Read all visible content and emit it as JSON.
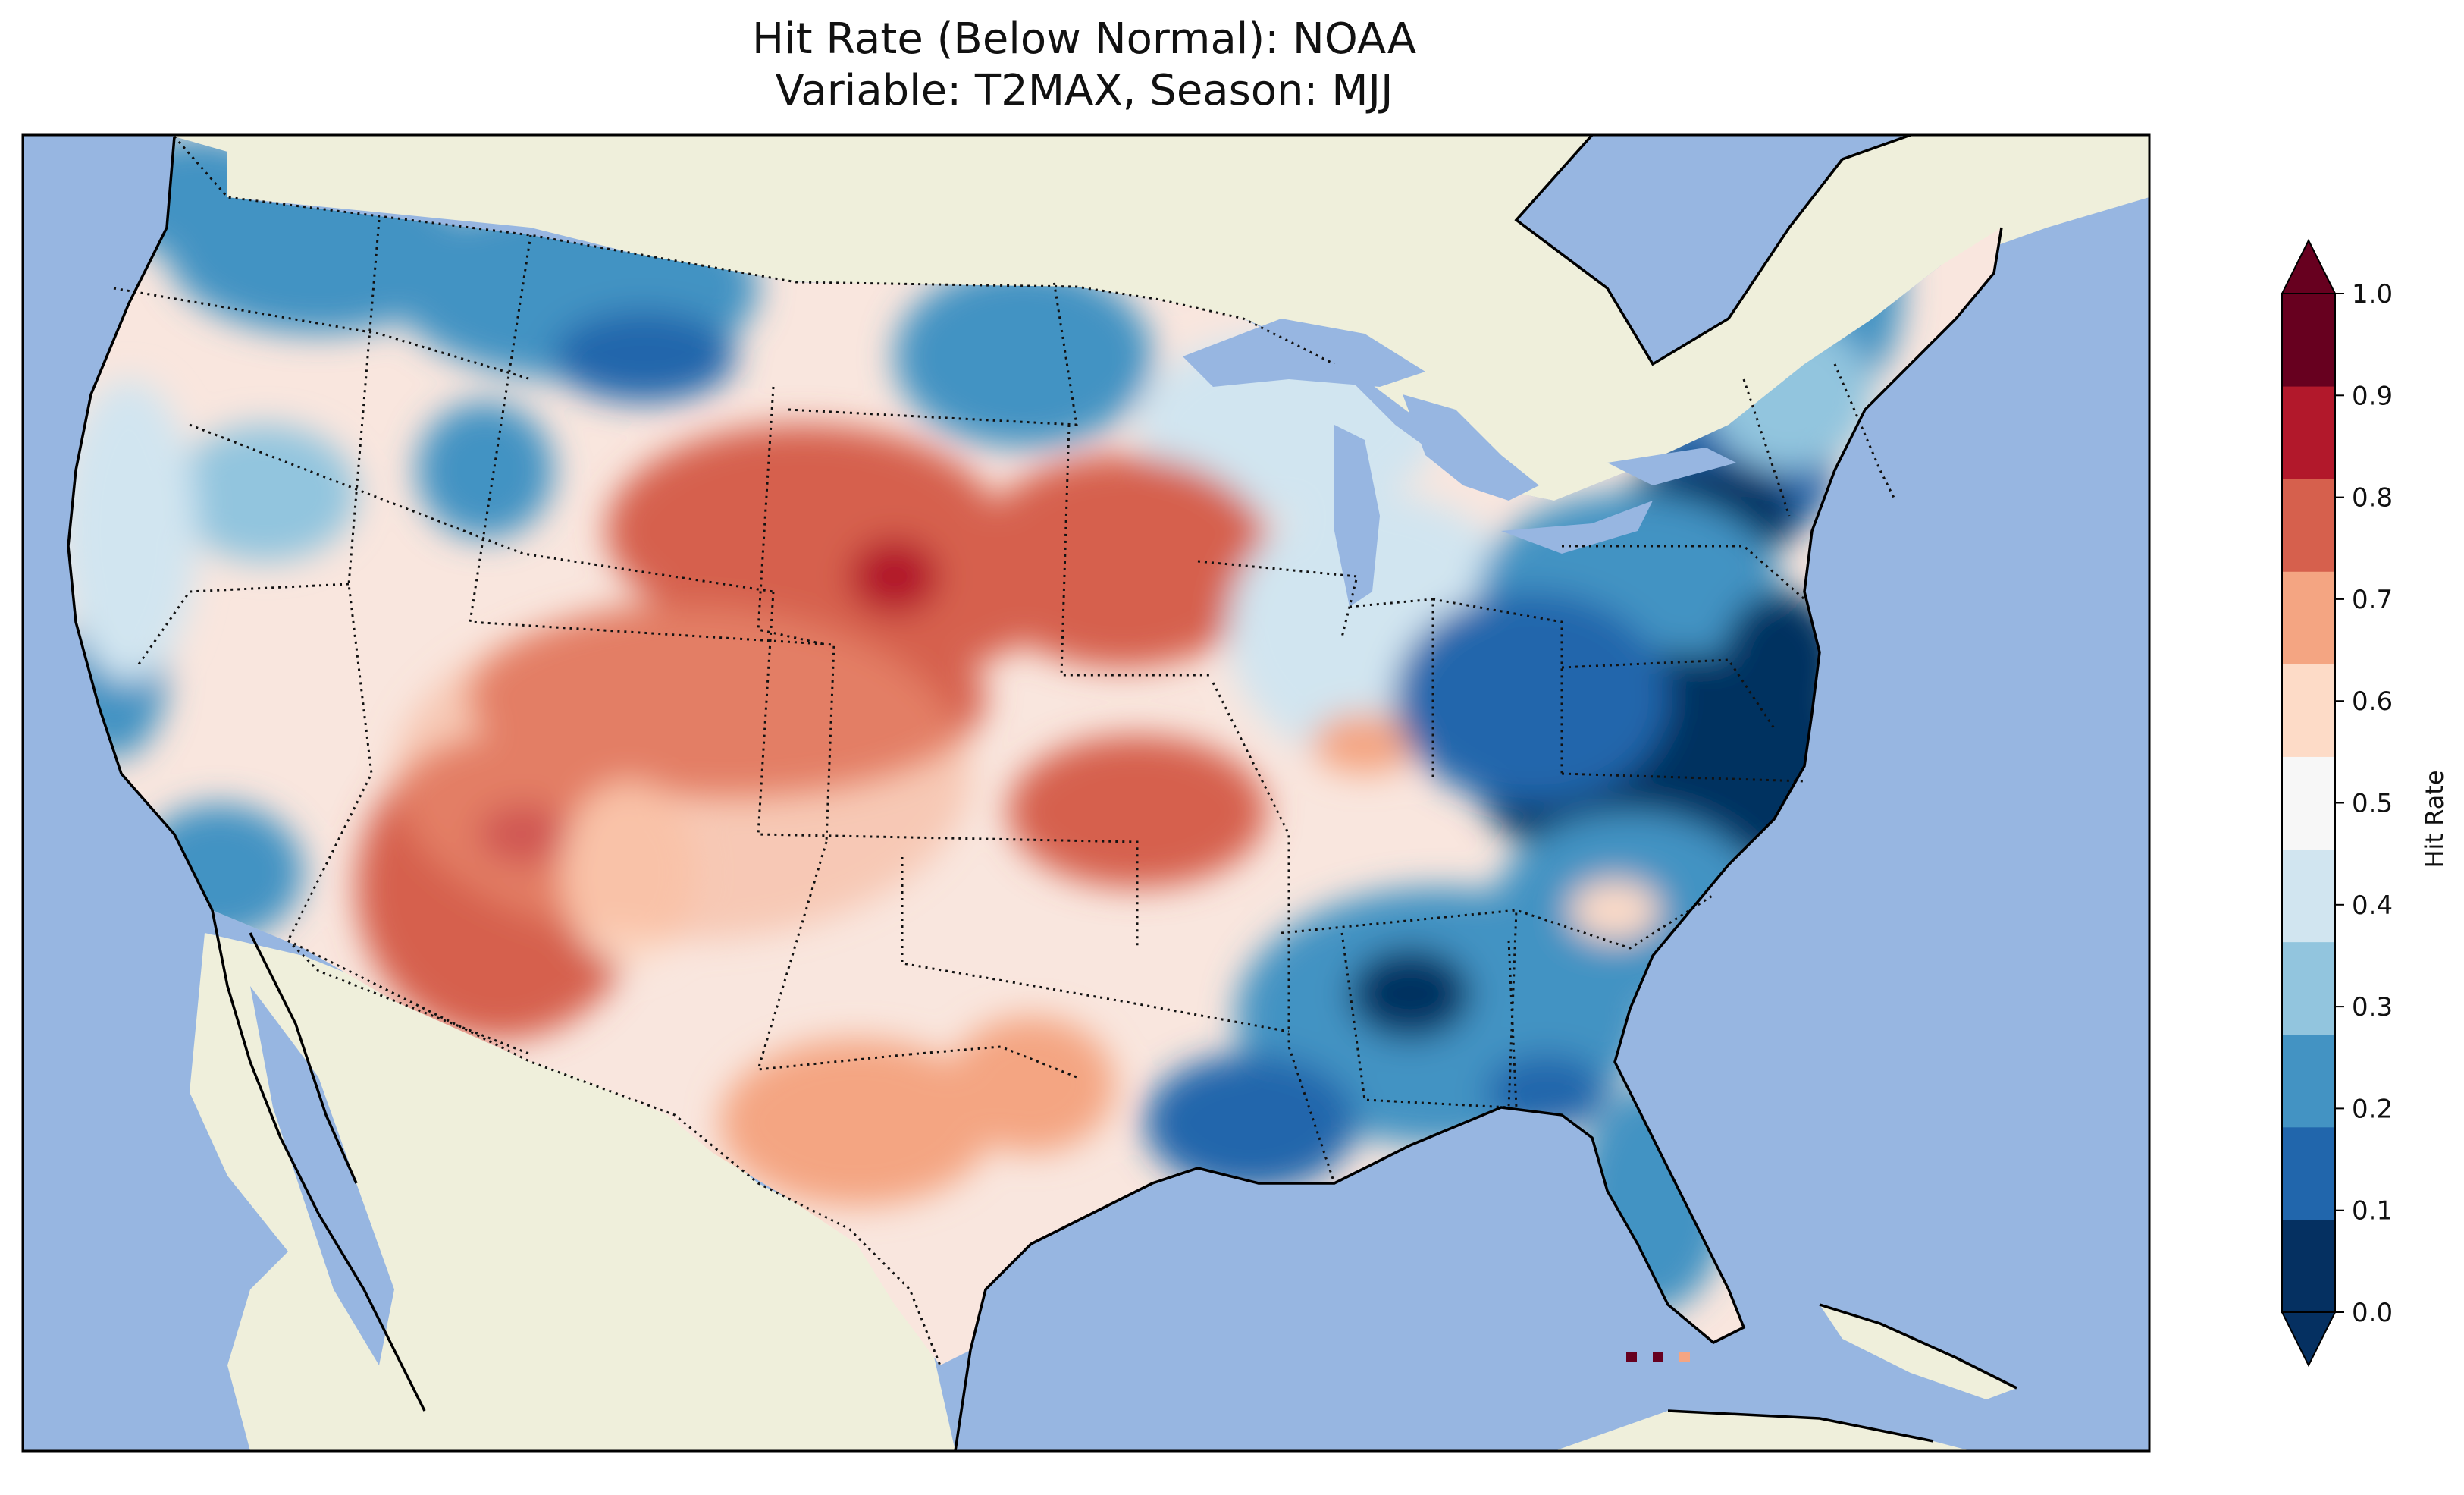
{
  "title": {
    "line1": "Hit Rate (Below Normal): NOAA",
    "line2": "Variable: T2MAX, Season: MJJ"
  },
  "colorbar": {
    "label": "Hit Rate",
    "ticks": [
      "0.0",
      "0.1",
      "0.2",
      "0.3",
      "0.4",
      "0.5",
      "0.6",
      "0.7",
      "0.8",
      "0.9",
      "1.0"
    ],
    "colors": [
      "#053061",
      "#2166ac",
      "#4393c3",
      "#92c5de",
      "#d1e5f0",
      "#f7f7f7",
      "#fddbc7",
      "#f4a582",
      "#d6604d",
      "#b2182b",
      "#67001f"
    ],
    "over_color": "#67001f",
    "under_color": "#053061"
  },
  "map": {
    "ocean_color": "#97b6e1",
    "land_color": "#efefdb",
    "region": "Contiguous United States",
    "field": "Hit Rate (Below Normal), T2MAX, MJJ"
  }
}
